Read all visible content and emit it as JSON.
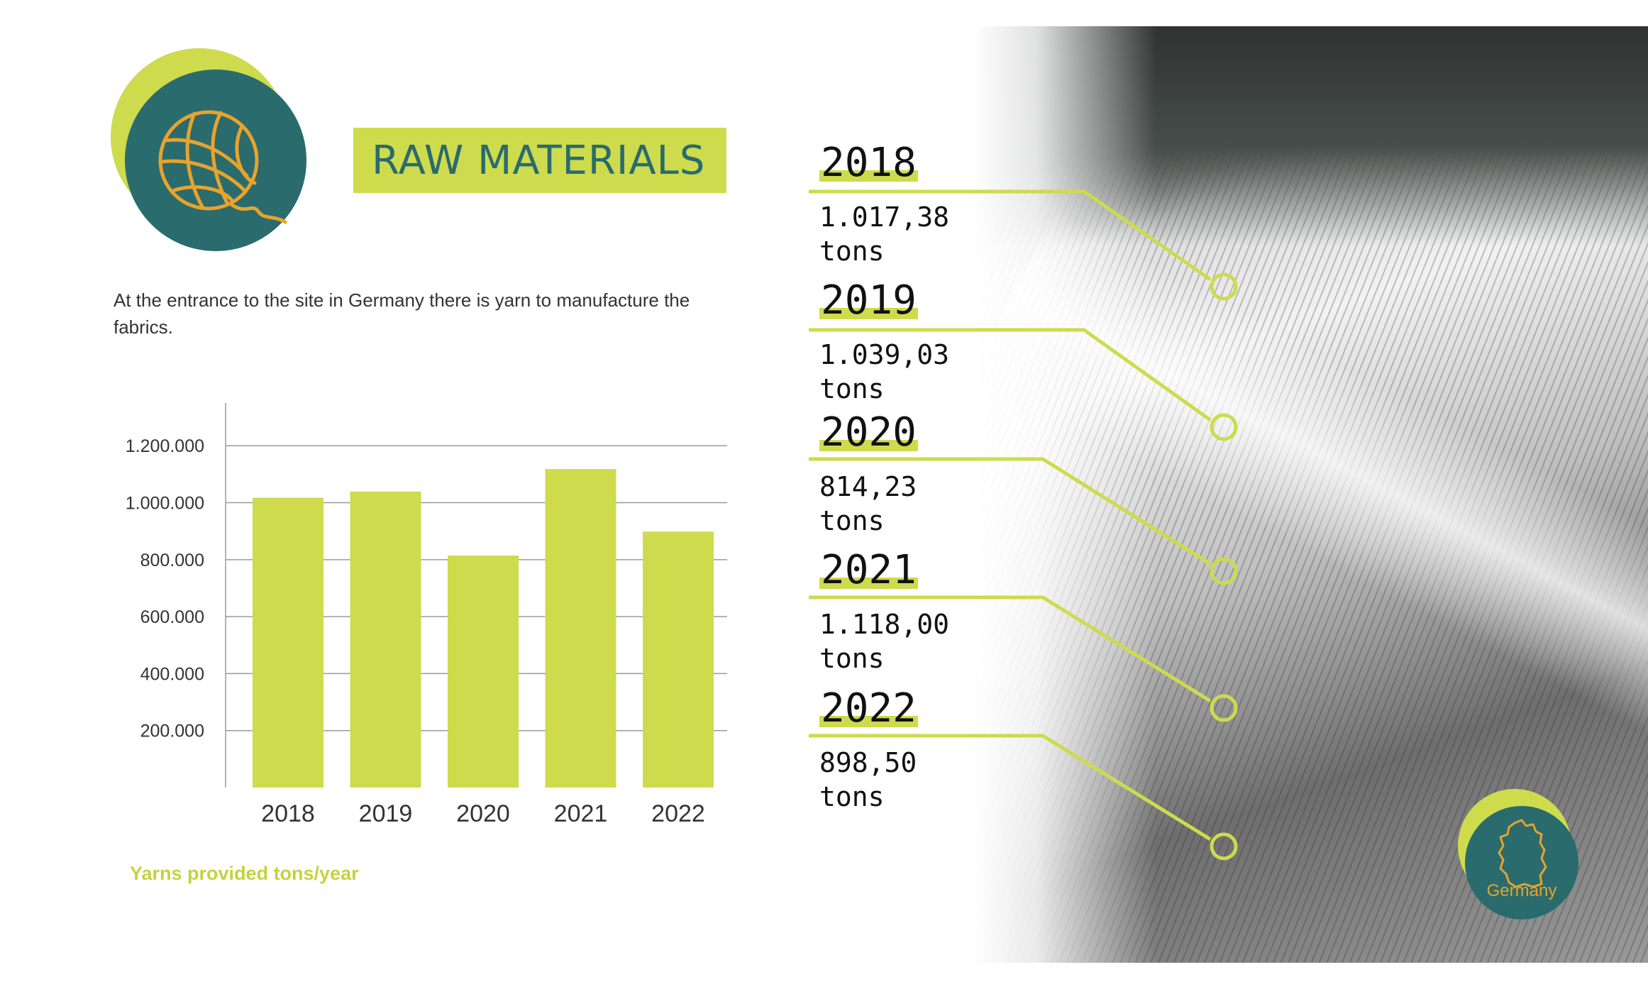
{
  "header": {
    "title": "RAW MATERIALS",
    "icon": "yarn-ball-icon"
  },
  "description": "At the entrance to the site in Germany there is yarn to manufacture the fabrics.",
  "chart_data": {
    "type": "bar",
    "categories": [
      "2018",
      "2019",
      "2020",
      "2021",
      "2022"
    ],
    "values": [
      1017380,
      1039030,
      814230,
      1118000,
      898500
    ],
    "ylim": [
      0,
      1350000
    ],
    "yticks": [
      200000,
      400000,
      600000,
      800000,
      1000000,
      1200000
    ],
    "ytick_labels": [
      "200.000",
      "400.000",
      "600.000",
      "800.000",
      "1.000.000",
      "1.200.000"
    ],
    "grid": true,
    "caption": "Yarns provided tons/year"
  },
  "highlights": [
    {
      "year": "2018",
      "value": "1.017,38",
      "unit": "tons"
    },
    {
      "year": "2019",
      "value": "1.039,03",
      "unit": "tons"
    },
    {
      "year": "2020",
      "value": "814,23",
      "unit": "tons"
    },
    {
      "year": "2021",
      "value": "1.118,00",
      "unit": "tons"
    },
    {
      "year": "2022",
      "value": "898,50",
      "unit": "tons"
    }
  ],
  "location_badge": {
    "label": "Germany",
    "icon": "germany-map-icon"
  },
  "colors": {
    "accent": "#cddb4d",
    "teal": "#2a6b6e",
    "orange": "#e7a32c",
    "caption": "#c4d33e"
  }
}
